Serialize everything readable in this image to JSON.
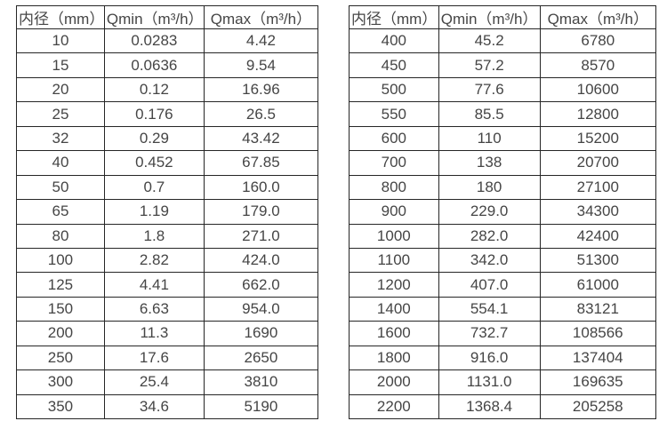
{
  "page": {
    "background_color": "#ffffff",
    "border_color": "#262626",
    "text_color": "#454545"
  },
  "tables": [
    {
      "name": "flow-spec-table-small-diameters",
      "headers": [
        "内径（mm）",
        "Qmin（m³/h）",
        "Qmax（m³/h）"
      ],
      "rows": [
        [
          "10",
          "0.0283",
          "4.42"
        ],
        [
          "15",
          "0.0636",
          "9.54"
        ],
        [
          "20",
          "0.12",
          "16.96"
        ],
        [
          "25",
          "0.176",
          "26.5"
        ],
        [
          "32",
          "0.29",
          "43.42"
        ],
        [
          "40",
          "0.452",
          "67.85"
        ],
        [
          "50",
          "0.7",
          "160.0"
        ],
        [
          "65",
          "1.19",
          "179.0"
        ],
        [
          "80",
          "1.8",
          "271.0"
        ],
        [
          "100",
          "2.82",
          "424.0"
        ],
        [
          "125",
          "4.41",
          "662.0"
        ],
        [
          "150",
          "6.63",
          "954.0"
        ],
        [
          "200",
          "11.3",
          "1690"
        ],
        [
          "250",
          "17.6",
          "2650"
        ],
        [
          "300",
          "25.4",
          "3810"
        ],
        [
          "350",
          "34.6",
          "5190"
        ]
      ]
    },
    {
      "name": "flow-spec-table-large-diameters",
      "headers": [
        "内径（mm）",
        "Qmin（m³/h）",
        "Qmax（m³/h）"
      ],
      "rows": [
        [
          "400",
          "45.2",
          "6780"
        ],
        [
          "450",
          "57.2",
          "8570"
        ],
        [
          "500",
          "77.6",
          "10600"
        ],
        [
          "550",
          "85.5",
          "12800"
        ],
        [
          "600",
          "110",
          "15200"
        ],
        [
          "700",
          "138",
          "20700"
        ],
        [
          "800",
          "180",
          "27100"
        ],
        [
          "900",
          "229.0",
          "34300"
        ],
        [
          "1000",
          "282.0",
          "42400"
        ],
        [
          "1100",
          "342.0",
          "51300"
        ],
        [
          "1200",
          "407.0",
          "61000"
        ],
        [
          "1400",
          "554.1",
          "83121"
        ],
        [
          "1600",
          "732.7",
          "108566"
        ],
        [
          "1800",
          "916.0",
          "137404"
        ],
        [
          "2000",
          "1131.0",
          "169635"
        ],
        [
          "2200",
          "1368.4",
          "205258"
        ]
      ]
    }
  ]
}
